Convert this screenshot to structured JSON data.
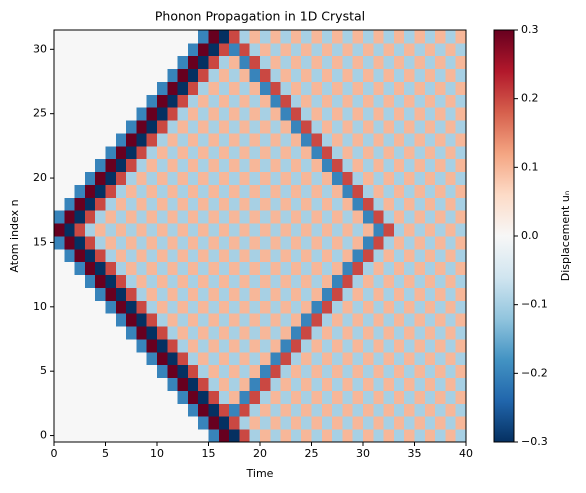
{
  "chart_data": {
    "type": "heatmap",
    "title": "Phonon Propagation in 1D Crystal",
    "xlabel": "Time",
    "ylabel": "Atom index n",
    "colorbar_label": "Displacement uₙ",
    "colormap": "RdBu_r",
    "xlim": [
      0,
      40
    ],
    "ylim": [
      -0.5,
      31.5
    ],
    "xticks": [
      0,
      5,
      10,
      15,
      20,
      25,
      30,
      35,
      40
    ],
    "yticks": [
      0,
      5,
      10,
      15,
      20,
      25,
      30
    ],
    "clim": [
      -0.3,
      0.3
    ],
    "cticks": [
      {
        "value": -0.3,
        "label": "−0.3"
      },
      {
        "value": -0.2,
        "label": "−0.2"
      },
      {
        "value": -0.1,
        "label": "−0.1"
      },
      {
        "value": 0,
        "label": "0.0"
      },
      0.1,
      0.2,
      0.3
    ],
    "z": [
      [
        0,
        0,
        0,
        0,
        0,
        0,
        0,
        0,
        0,
        0,
        0,
        0,
        0,
        0,
        0,
        -0.2,
        0.3,
        -0.3,
        0.2,
        -0.1,
        0.1,
        -0.1,
        0.1,
        -0.1,
        0.1,
        -0.1,
        0.1,
        -0.1,
        0.1,
        -0.1,
        0.1,
        -0.1,
        0.1,
        -0.1,
        0.1,
        -0.1,
        0.1,
        -0.1,
        0.1,
        -0.1
      ],
      [
        0,
        0,
        0,
        0,
        0,
        0,
        0,
        0,
        0,
        0,
        0,
        0,
        0,
        0,
        -0.2,
        0.3,
        -0.3,
        0.2,
        -0.1,
        0.1,
        -0.1,
        0.1,
        -0.1,
        0.1,
        -0.1,
        0.1,
        -0.1,
        0.1,
        -0.1,
        0.1,
        -0.1,
        0.1,
        -0.1,
        0.1,
        -0.1,
        0.1,
        -0.1,
        0.1,
        -0.1,
        0.1
      ],
      [
        0,
        0,
        0,
        0,
        0,
        0,
        0,
        0,
        0,
        0,
        0,
        0,
        0,
        -0.2,
        0.3,
        -0.3,
        0.2,
        -0.2,
        0.2,
        -0.1,
        0.1,
        -0.1,
        0.1,
        -0.1,
        0.1,
        -0.1,
        0.1,
        -0.1,
        0.1,
        -0.1,
        0.1,
        -0.1,
        0.1,
        -0.1,
        0.1,
        -0.1,
        0.1,
        -0.1,
        0.1,
        -0.1
      ],
      [
        0,
        0,
        0,
        0,
        0,
        0,
        0,
        0,
        0,
        0,
        0,
        0,
        -0.2,
        0.3,
        -0.3,
        0.2,
        -0.1,
        0.1,
        -0.2,
        0.2,
        -0.1,
        0.1,
        -0.1,
        0.1,
        -0.1,
        0.1,
        -0.1,
        0.1,
        -0.1,
        0.1,
        -0.1,
        0.1,
        -0.1,
        0.1,
        -0.1,
        0.1,
        -0.1,
        0.1,
        -0.1,
        0.1
      ],
      [
        0,
        0,
        0,
        0,
        0,
        0,
        0,
        0,
        0,
        0,
        0,
        -0.2,
        0.3,
        -0.3,
        0.2,
        -0.1,
        0.1,
        -0.1,
        0.1,
        -0.2,
        0.2,
        -0.1,
        0.1,
        -0.1,
        0.1,
        -0.1,
        0.1,
        -0.1,
        0.1,
        -0.1,
        0.1,
        -0.1,
        0.1,
        -0.1,
        0.1,
        -0.1,
        0.1,
        -0.1,
        0.1,
        -0.1
      ],
      [
        0,
        0,
        0,
        0,
        0,
        0,
        0,
        0,
        0,
        0,
        -0.2,
        0.3,
        -0.3,
        0.2,
        -0.1,
        0.1,
        -0.1,
        0.1,
        -0.1,
        0.1,
        -0.2,
        0.2,
        -0.1,
        0.1,
        -0.1,
        0.1,
        -0.1,
        0.1,
        -0.1,
        0.1,
        -0.1,
        0.1,
        -0.1,
        0.1,
        -0.1,
        0.1,
        -0.1,
        0.1,
        -0.1,
        0.1
      ],
      [
        0,
        0,
        0,
        0,
        0,
        0,
        0,
        0,
        0,
        -0.2,
        0.3,
        -0.3,
        0.2,
        -0.1,
        0.1,
        -0.1,
        0.1,
        -0.1,
        0.1,
        -0.1,
        0.1,
        -0.2,
        0.2,
        -0.1,
        0.1,
        -0.1,
        0.1,
        -0.1,
        0.1,
        -0.1,
        0.1,
        -0.1,
        0.1,
        -0.1,
        0.1,
        -0.1,
        0.1,
        -0.1,
        0.1,
        -0.1
      ],
      [
        0,
        0,
        0,
        0,
        0,
        0,
        0,
        0,
        -0.2,
        0.3,
        -0.3,
        0.2,
        -0.1,
        0.1,
        -0.1,
        0.1,
        -0.1,
        0.1,
        -0.1,
        0.1,
        -0.1,
        0.1,
        -0.2,
        0.2,
        -0.1,
        0.1,
        -0.1,
        0.1,
        -0.1,
        0.1,
        -0.1,
        0.1,
        -0.1,
        0.1,
        -0.1,
        0.1,
        -0.1,
        0.1,
        -0.1,
        0.1
      ],
      [
        0,
        0,
        0,
        0,
        0,
        0,
        0,
        -0.2,
        0.3,
        -0.3,
        0.2,
        -0.1,
        0.1,
        -0.1,
        0.1,
        -0.1,
        0.1,
        -0.1,
        0.1,
        -0.1,
        0.1,
        -0.1,
        0.1,
        -0.2,
        0.2,
        -0.1,
        0.1,
        -0.1,
        0.1,
        -0.1,
        0.1,
        -0.1,
        0.1,
        -0.1,
        0.1,
        -0.1,
        0.1,
        -0.1,
        0.1,
        -0.1
      ],
      [
        0,
        0,
        0,
        0,
        0,
        0,
        -0.2,
        0.3,
        -0.3,
        0.2,
        -0.1,
        0.1,
        -0.1,
        0.1,
        -0.1,
        0.1,
        -0.1,
        0.1,
        -0.1,
        0.1,
        -0.1,
        0.1,
        -0.1,
        0.1,
        -0.2,
        0.2,
        -0.1,
        0.1,
        -0.1,
        0.1,
        -0.1,
        0.1,
        -0.1,
        0.1,
        -0.1,
        0.1,
        -0.1,
        0.1,
        -0.1,
        0.1
      ],
      [
        0,
        0,
        0,
        0,
        0,
        -0.2,
        0.3,
        -0.3,
        0.2,
        -0.1,
        0.1,
        -0.1,
        0.1,
        -0.1,
        0.1,
        -0.1,
        0.1,
        -0.1,
        0.1,
        -0.1,
        0.1,
        -0.1,
        0.1,
        -0.1,
        0.1,
        -0.2,
        0.2,
        -0.1,
        0.1,
        -0.1,
        0.1,
        -0.1,
        0.1,
        -0.1,
        0.1,
        -0.1,
        0.1,
        -0.1,
        0.1,
        -0.1
      ],
      [
        0,
        0,
        0,
        0,
        -0.2,
        0.3,
        -0.3,
        0.2,
        -0.1,
        0.1,
        -0.1,
        0.1,
        -0.1,
        0.1,
        -0.1,
        0.1,
        -0.1,
        0.1,
        -0.1,
        0.1,
        -0.1,
        0.1,
        -0.1,
        0.1,
        -0.1,
        0.1,
        -0.2,
        0.2,
        -0.1,
        0.1,
        -0.1,
        0.1,
        -0.1,
        0.1,
        -0.1,
        0.1,
        -0.1,
        0.1,
        -0.1,
        0.1
      ],
      [
        0,
        0,
        0,
        -0.2,
        0.3,
        -0.3,
        0.2,
        -0.1,
        0.1,
        -0.1,
        0.1,
        -0.1,
        0.1,
        -0.1,
        0.1,
        -0.1,
        0.1,
        -0.1,
        0.1,
        -0.1,
        0.1,
        -0.1,
        0.1,
        -0.1,
        0.1,
        -0.1,
        0.1,
        -0.2,
        0.2,
        -0.1,
        0.1,
        -0.1,
        0.1,
        -0.1,
        0.1,
        -0.1,
        0.1,
        -0.1,
        0.1,
        -0.1
      ],
      [
        0,
        0,
        -0.2,
        0.3,
        -0.3,
        0.2,
        -0.1,
        0.1,
        -0.1,
        0.1,
        -0.1,
        0.1,
        -0.1,
        0.1,
        -0.1,
        0.1,
        -0.1,
        0.1,
        -0.1,
        0.1,
        -0.1,
        0.1,
        -0.1,
        0.1,
        -0.1,
        0.1,
        -0.1,
        0.1,
        -0.2,
        0.2,
        -0.1,
        0.1,
        -0.1,
        0.1,
        -0.1,
        0.1,
        -0.1,
        0.1,
        -0.1,
        0.1
      ],
      [
        0,
        -0.2,
        0.3,
        -0.3,
        0.2,
        -0.1,
        0.1,
        -0.1,
        0.1,
        -0.1,
        0.1,
        -0.1,
        0.1,
        -0.1,
        0.1,
        -0.1,
        0.1,
        -0.1,
        0.1,
        -0.1,
        0.1,
        -0.1,
        0.1,
        -0.1,
        0.1,
        -0.1,
        0.1,
        -0.1,
        0.1,
        -0.2,
        0.2,
        -0.1,
        0.1,
        -0.1,
        0.1,
        -0.1,
        0.1,
        -0.1,
        0.1,
        -0.1
      ],
      [
        -0.2,
        0.3,
        -0.3,
        0.2,
        -0.1,
        0.1,
        -0.1,
        0.1,
        -0.1,
        0.1,
        -0.1,
        0.1,
        -0.1,
        0.1,
        -0.1,
        0.1,
        -0.1,
        0.1,
        -0.1,
        0.1,
        -0.1,
        0.1,
        -0.1,
        0.1,
        -0.1,
        0.1,
        -0.1,
        0.1,
        -0.1,
        0.1,
        -0.2,
        0.2,
        -0.1,
        0.1,
        -0.1,
        0.1,
        -0.1,
        0.1,
        -0.1,
        0.1
      ],
      [
        0.3,
        -0.3,
        0.2,
        -0.1,
        0.1,
        -0.1,
        0.1,
        -0.1,
        0.1,
        -0.1,
        0.1,
        -0.1,
        0.1,
        -0.1,
        0.1,
        -0.1,
        0.1,
        -0.1,
        0.1,
        -0.1,
        0.1,
        -0.1,
        0.1,
        -0.1,
        0.1,
        -0.1,
        0.1,
        -0.1,
        0.1,
        -0.1,
        0.1,
        -0.2,
        0.2,
        -0.1,
        0.1,
        -0.1,
        0.1,
        -0.1,
        0.1,
        -0.1
      ],
      [
        -0.2,
        0.3,
        -0.3,
        0.2,
        -0.1,
        0.1,
        -0.1,
        0.1,
        -0.1,
        0.1,
        -0.1,
        0.1,
        -0.1,
        0.1,
        -0.1,
        0.1,
        -0.1,
        0.1,
        -0.1,
        0.1,
        -0.1,
        0.1,
        -0.1,
        0.1,
        -0.1,
        0.1,
        -0.1,
        0.1,
        -0.1,
        0.1,
        -0.2,
        0.2,
        -0.1,
        0.1,
        -0.1,
        0.1,
        -0.1,
        0.1,
        -0.1,
        0.1
      ],
      [
        0,
        -0.2,
        0.3,
        -0.3,
        0.2,
        -0.1,
        0.1,
        -0.1,
        0.1,
        -0.1,
        0.1,
        -0.1,
        0.1,
        -0.1,
        0.1,
        -0.1,
        0.1,
        -0.1,
        0.1,
        -0.1,
        0.1,
        -0.1,
        0.1,
        -0.1,
        0.1,
        -0.1,
        0.1,
        -0.1,
        0.1,
        -0.2,
        0.2,
        -0.1,
        0.1,
        -0.1,
        0.1,
        -0.1,
        0.1,
        -0.1,
        0.1,
        -0.1
      ],
      [
        0,
        0,
        -0.2,
        0.3,
        -0.3,
        0.2,
        -0.1,
        0.1,
        -0.1,
        0.1,
        -0.1,
        0.1,
        -0.1,
        0.1,
        -0.1,
        0.1,
        -0.1,
        0.1,
        -0.1,
        0.1,
        -0.1,
        0.1,
        -0.1,
        0.1,
        -0.1,
        0.1,
        -0.1,
        0.1,
        -0.2,
        0.2,
        -0.1,
        0.1,
        -0.1,
        0.1,
        -0.1,
        0.1,
        -0.1,
        0.1,
        -0.1,
        0.1
      ],
      [
        0,
        0,
        0,
        -0.2,
        0.3,
        -0.3,
        0.2,
        -0.1,
        0.1,
        -0.1,
        0.1,
        -0.1,
        0.1,
        -0.1,
        0.1,
        -0.1,
        0.1,
        -0.1,
        0.1,
        -0.1,
        0.1,
        -0.1,
        0.1,
        -0.1,
        0.1,
        -0.1,
        0.1,
        -0.2,
        0.2,
        -0.1,
        0.1,
        -0.1,
        0.1,
        -0.1,
        0.1,
        -0.1,
        0.1,
        -0.1,
        0.1,
        -0.1
      ],
      [
        0,
        0,
        0,
        0,
        -0.2,
        0.3,
        -0.3,
        0.2,
        -0.1,
        0.1,
        -0.1,
        0.1,
        -0.1,
        0.1,
        -0.1,
        0.1,
        -0.1,
        0.1,
        -0.1,
        0.1,
        -0.1,
        0.1,
        -0.1,
        0.1,
        -0.1,
        0.1,
        -0.2,
        0.2,
        -0.1,
        0.1,
        -0.1,
        0.1,
        -0.1,
        0.1,
        -0.1,
        0.1,
        -0.1,
        0.1,
        -0.1,
        0.1
      ],
      [
        0,
        0,
        0,
        0,
        0,
        -0.2,
        0.3,
        -0.3,
        0.2,
        -0.1,
        0.1,
        -0.1,
        0.1,
        -0.1,
        0.1,
        -0.1,
        0.1,
        -0.1,
        0.1,
        -0.1,
        0.1,
        -0.1,
        0.1,
        -0.1,
        0.1,
        -0.2,
        0.2,
        -0.1,
        0.1,
        -0.1,
        0.1,
        -0.1,
        0.1,
        -0.1,
        0.1,
        -0.1,
        0.1,
        -0.1,
        0.1,
        -0.1
      ],
      [
        0,
        0,
        0,
        0,
        0,
        0,
        -0.2,
        0.3,
        -0.3,
        0.2,
        -0.1,
        0.1,
        -0.1,
        0.1,
        -0.1,
        0.1,
        -0.1,
        0.1,
        -0.1,
        0.1,
        -0.1,
        0.1,
        -0.1,
        0.1,
        -0.2,
        0.2,
        -0.1,
        0.1,
        -0.1,
        0.1,
        -0.1,
        0.1,
        -0.1,
        0.1,
        -0.1,
        0.1,
        -0.1,
        0.1,
        -0.1,
        0.1
      ],
      [
        0,
        0,
        0,
        0,
        0,
        0,
        0,
        -0.2,
        0.3,
        -0.3,
        0.2,
        -0.1,
        0.1,
        -0.1,
        0.1,
        -0.1,
        0.1,
        -0.1,
        0.1,
        -0.1,
        0.1,
        -0.1,
        0.1,
        -0.2,
        0.2,
        -0.1,
        0.1,
        -0.1,
        0.1,
        -0.1,
        0.1,
        -0.1,
        0.1,
        -0.1,
        0.1,
        -0.1,
        0.1,
        -0.1,
        0.1,
        -0.1
      ],
      [
        0,
        0,
        0,
        0,
        0,
        0,
        0,
        0,
        -0.2,
        0.3,
        -0.3,
        0.2,
        -0.1,
        0.1,
        -0.1,
        0.1,
        -0.1,
        0.1,
        -0.1,
        0.1,
        -0.1,
        0.1,
        -0.2,
        0.2,
        -0.1,
        0.1,
        -0.1,
        0.1,
        -0.1,
        0.1,
        -0.1,
        0.1,
        -0.1,
        0.1,
        -0.1,
        0.1,
        -0.1,
        0.1,
        -0.1,
        0.1
      ],
      [
        0,
        0,
        0,
        0,
        0,
        0,
        0,
        0,
        0,
        -0.2,
        0.3,
        -0.3,
        0.2,
        -0.1,
        0.1,
        -0.1,
        0.1,
        -0.1,
        0.1,
        -0.1,
        0.1,
        -0.2,
        0.2,
        -0.1,
        0.1,
        -0.1,
        0.1,
        -0.1,
        0.1,
        -0.1,
        0.1,
        -0.1,
        0.1,
        -0.1,
        0.1,
        -0.1,
        0.1,
        -0.1,
        0.1,
        -0.1
      ],
      [
        0,
        0,
        0,
        0,
        0,
        0,
        0,
        0,
        0,
        0,
        -0.2,
        0.3,
        -0.3,
        0.2,
        -0.1,
        0.1,
        -0.1,
        0.1,
        -0.1,
        0.1,
        -0.2,
        0.2,
        -0.1,
        0.1,
        -0.1,
        0.1,
        -0.1,
        0.1,
        -0.1,
        0.1,
        -0.1,
        0.1,
        -0.1,
        0.1,
        -0.1,
        0.1,
        -0.1,
        0.1,
        -0.1,
        0.1
      ],
      [
        0,
        0,
        0,
        0,
        0,
        0,
        0,
        0,
        0,
        0,
        0,
        -0.2,
        0.3,
        -0.3,
        0.2,
        -0.1,
        0.1,
        -0.1,
        0.1,
        -0.2,
        0.2,
        -0.1,
        0.1,
        -0.1,
        0.1,
        -0.1,
        0.1,
        -0.1,
        0.1,
        -0.1,
        0.1,
        -0.1,
        0.1,
        -0.1,
        0.1,
        -0.1,
        0.1,
        -0.1,
        0.1,
        -0.1
      ],
      [
        0,
        0,
        0,
        0,
        0,
        0,
        0,
        0,
        0,
        0,
        0,
        0,
        -0.2,
        0.3,
        -0.3,
        0.2,
        -0.1,
        0.1,
        -0.2,
        0.2,
        -0.1,
        0.1,
        -0.1,
        0.1,
        -0.1,
        0.1,
        -0.1,
        0.1,
        -0.1,
        0.1,
        -0.1,
        0.1,
        -0.1,
        0.1,
        -0.1,
        0.1,
        -0.1,
        0.1,
        -0.1,
        0.1
      ],
      [
        0,
        0,
        0,
        0,
        0,
        0,
        0,
        0,
        0,
        0,
        0,
        0,
        0,
        -0.2,
        0.3,
        -0.3,
        0.2,
        -0.2,
        0.2,
        -0.1,
        0.1,
        -0.1,
        0.1,
        -0.1,
        0.1,
        -0.1,
        0.1,
        -0.1,
        0.1,
        -0.1,
        0.1,
        -0.1,
        0.1,
        -0.1,
        0.1,
        -0.1,
        0.1,
        -0.1,
        0.1,
        -0.1
      ],
      [
        0,
        0,
        0,
        0,
        0,
        0,
        0,
        0,
        0,
        0,
        0,
        0,
        0,
        0,
        -0.2,
        0.3,
        -0.3,
        0.2,
        -0.1,
        0.1,
        -0.1,
        0.1,
        -0.1,
        0.1,
        -0.1,
        0.1,
        -0.1,
        0.1,
        -0.1,
        0.1,
        -0.1,
        0.1,
        -0.1,
        0.1,
        -0.1,
        0.1,
        -0.1,
        0.1,
        -0.1,
        0.1
      ]
    ]
  }
}
